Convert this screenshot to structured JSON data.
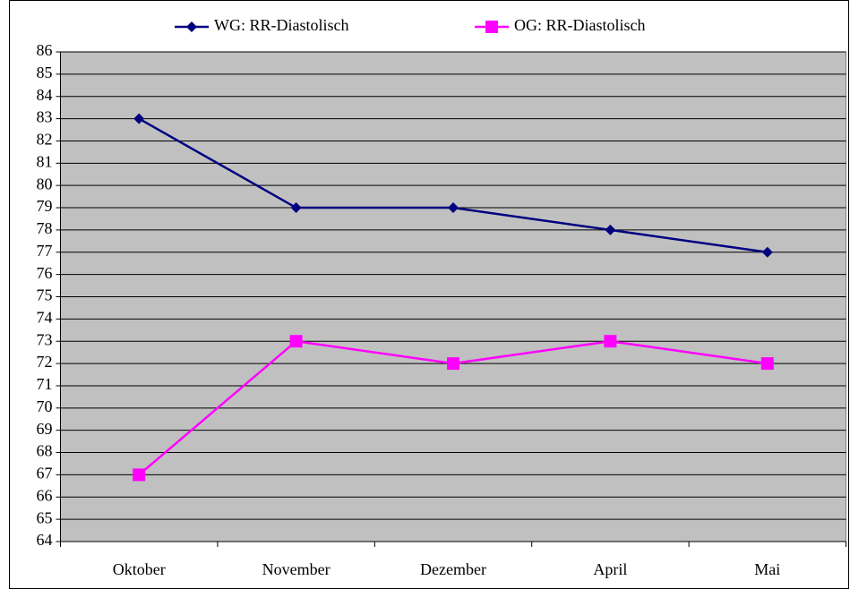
{
  "chart_data": {
    "type": "line",
    "categories": [
      "Oktober",
      "November",
      "Dezember",
      "April",
      "Mai"
    ],
    "series": [
      {
        "name": "WG: RR-Diastolisch",
        "color": "#000080",
        "marker": "diamond",
        "values": [
          83,
          79,
          79,
          78,
          77
        ]
      },
      {
        "name": "OG: RR-Diastolisch",
        "color": "#ff00ff",
        "marker": "square",
        "values": [
          67,
          73,
          72,
          73,
          72
        ]
      }
    ],
    "ylim": [
      64,
      86
    ],
    "yticks": [
      64,
      65,
      66,
      67,
      68,
      69,
      70,
      71,
      72,
      73,
      74,
      75,
      76,
      77,
      78,
      79,
      80,
      81,
      82,
      83,
      84,
      85,
      86
    ],
    "grid": true,
    "plot_background": "#c0c0c0",
    "legend": "top"
  }
}
